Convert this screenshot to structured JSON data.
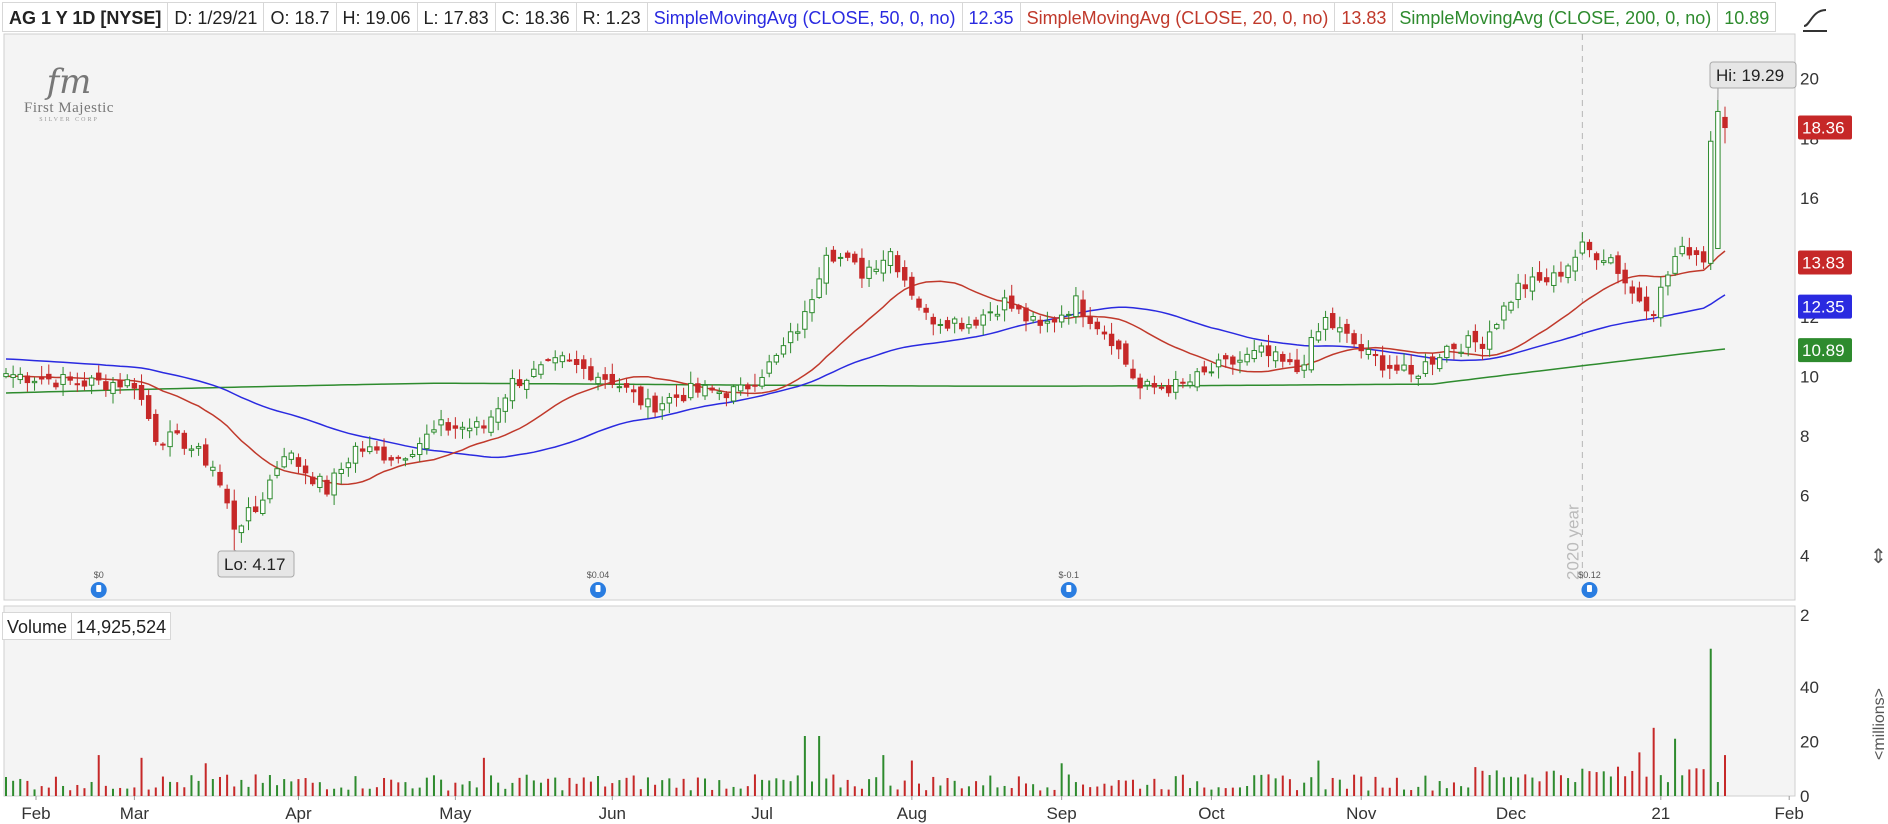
{
  "header": {
    "symbol": "AG 1 Y 1D [NYSE]",
    "date": "D: 1/29/21",
    "open": "O: 18.7",
    "high": "H: 19.06",
    "low": "L: 17.83",
    "close": "C: 18.36",
    "range": "R: 1.23",
    "sma50_label": "SimpleMovingAvg (CLOSE, 50, 0, no)",
    "sma50_value": "12.35",
    "sma20_label": "SimpleMovingAvg (CLOSE, 20, 0, no)",
    "sma20_value": "13.83",
    "sma200_label": "SimpleMovingAvg (CLOSE, 200, 0, no)",
    "sma200_value": "10.89"
  },
  "logo": {
    "mono": "fm",
    "name": "First Majestic",
    "sub": "SILVER CORP"
  },
  "volume_header": {
    "label": "Volume",
    "value": "14,925,524"
  },
  "colors": {
    "up": "#2e8b2e",
    "down": "#c62828",
    "sma20": "#c0392b",
    "sma50": "#2a2ae0",
    "sma200": "#2e8b2e",
    "grid": "#e8e8e8",
    "pane_bg": "#f4f4f4"
  },
  "chart_data": [
    {
      "type": "candlestick",
      "title": "AG 1 Y 1D [NYSE]",
      "xlabel": "",
      "ylabel": "",
      "x_ticks": [
        "Feb",
        "Mar",
        "Apr",
        "May",
        "Jun",
        "Jul",
        "Aug",
        "Sep",
        "Oct",
        "Nov",
        "Dec",
        "21",
        "Feb"
      ],
      "y_ticks": [
        4,
        6,
        8,
        10,
        12,
        14,
        16,
        18,
        20
      ],
      "ylim": [
        2.5,
        21.5
      ],
      "grid": false,
      "year_marker": "2020 year",
      "annotations": {
        "high": "Hi: 19.29",
        "low": "Lo: 4.17"
      },
      "dividends": [
        "$0",
        "$0.04",
        "$-0.1",
        "$0.12"
      ],
      "price_labels": [
        {
          "name": "last",
          "value": "18.36",
          "color": "#c62828"
        },
        {
          "name": "sma20",
          "value": "13.83",
          "color": "#c62828"
        },
        {
          "name": "sma50",
          "value": "12.35",
          "color": "#2a2ae0"
        },
        {
          "name": "sma200",
          "value": "10.89",
          "color": "#2e8b2e"
        }
      ],
      "anchors": [
        {
          "i": 0,
          "c": 10.1
        },
        {
          "i": 10,
          "c": 9.8
        },
        {
          "i": 18,
          "c": 9.8
        },
        {
          "i": 21,
          "c": 8.0
        },
        {
          "i": 25,
          "c": 7.8
        },
        {
          "i": 29,
          "c": 7.0
        },
        {
          "i": 32,
          "c": 5.0
        },
        {
          "i": 35,
          "c": 5.5
        },
        {
          "i": 39,
          "c": 7.5
        },
        {
          "i": 45,
          "c": 6.2
        },
        {
          "i": 49,
          "c": 7.6
        },
        {
          "i": 55,
          "c": 7.3
        },
        {
          "i": 61,
          "c": 8.3
        },
        {
          "i": 67,
          "c": 8.3
        },
        {
          "i": 71,
          "c": 9.8
        },
        {
          "i": 78,
          "c": 10.5
        },
        {
          "i": 85,
          "c": 9.9
        },
        {
          "i": 90,
          "c": 9.0
        },
        {
          "i": 96,
          "c": 9.5
        },
        {
          "i": 103,
          "c": 9.5
        },
        {
          "i": 108,
          "c": 10.6
        },
        {
          "i": 112,
          "c": 12.0
        },
        {
          "i": 115,
          "c": 14.3
        },
        {
          "i": 120,
          "c": 13.5
        },
        {
          "i": 124,
          "c": 14.2
        },
        {
          "i": 129,
          "c": 12.0
        },
        {
          "i": 135,
          "c": 11.8
        },
        {
          "i": 140,
          "c": 12.5
        },
        {
          "i": 145,
          "c": 11.6
        },
        {
          "i": 150,
          "c": 12.5
        },
        {
          "i": 155,
          "c": 11.3
        },
        {
          "i": 159,
          "c": 9.6
        },
        {
          "i": 165,
          "c": 9.7
        },
        {
          "i": 170,
          "c": 10.3
        },
        {
          "i": 176,
          "c": 10.8
        },
        {
          "i": 181,
          "c": 10.2
        },
        {
          "i": 185,
          "c": 11.9
        },
        {
          "i": 191,
          "c": 10.7
        },
        {
          "i": 197,
          "c": 10.0
        },
        {
          "i": 202,
          "c": 11.0
        },
        {
          "i": 207,
          "c": 11.2
        },
        {
          "i": 212,
          "c": 13.0
        },
        {
          "i": 217,
          "c": 13.3
        },
        {
          "i": 221,
          "c": 14.3
        },
        {
          "i": 225,
          "c": 14.0
        },
        {
          "i": 228,
          "c": 12.8
        },
        {
          "i": 231,
          "c": 12.3
        },
        {
          "i": 234,
          "c": 14.0
        },
        {
          "i": 236,
          "c": 14.3
        },
        {
          "i": 238,
          "c": 14.0
        },
        {
          "i": 239,
          "c": 17.9
        },
        {
          "i": 240,
          "c": 18.9
        },
        {
          "i": 241,
          "c": 18.36
        }
      ],
      "last_bar": {
        "open": 18.7,
        "high": 19.06,
        "low": 17.83,
        "close": 18.36
      },
      "spike_bar": {
        "open": 14.3,
        "high": 19.29,
        "low": 15.4,
        "close": 18.9
      }
    },
    {
      "type": "bar",
      "title": "Volume",
      "ylabel": "<millions>",
      "y_ticks": [
        0,
        20,
        40
      ],
      "ylim": [
        0,
        55
      ],
      "peaks": [
        {
          "i": 13,
          "v": 15
        },
        {
          "i": 19,
          "v": 14
        },
        {
          "i": 28,
          "v": 12
        },
        {
          "i": 67,
          "v": 14
        },
        {
          "i": 112,
          "v": 22
        },
        {
          "i": 114,
          "v": 22
        },
        {
          "i": 123,
          "v": 15
        },
        {
          "i": 127,
          "v": 13
        },
        {
          "i": 148,
          "v": 12
        },
        {
          "i": 184,
          "v": 13
        },
        {
          "i": 229,
          "v": 16
        },
        {
          "i": 231,
          "v": 25
        },
        {
          "i": 234,
          "v": 21
        },
        {
          "i": 239,
          "v": 54
        },
        {
          "i": 241,
          "v": 15
        }
      ]
    }
  ]
}
